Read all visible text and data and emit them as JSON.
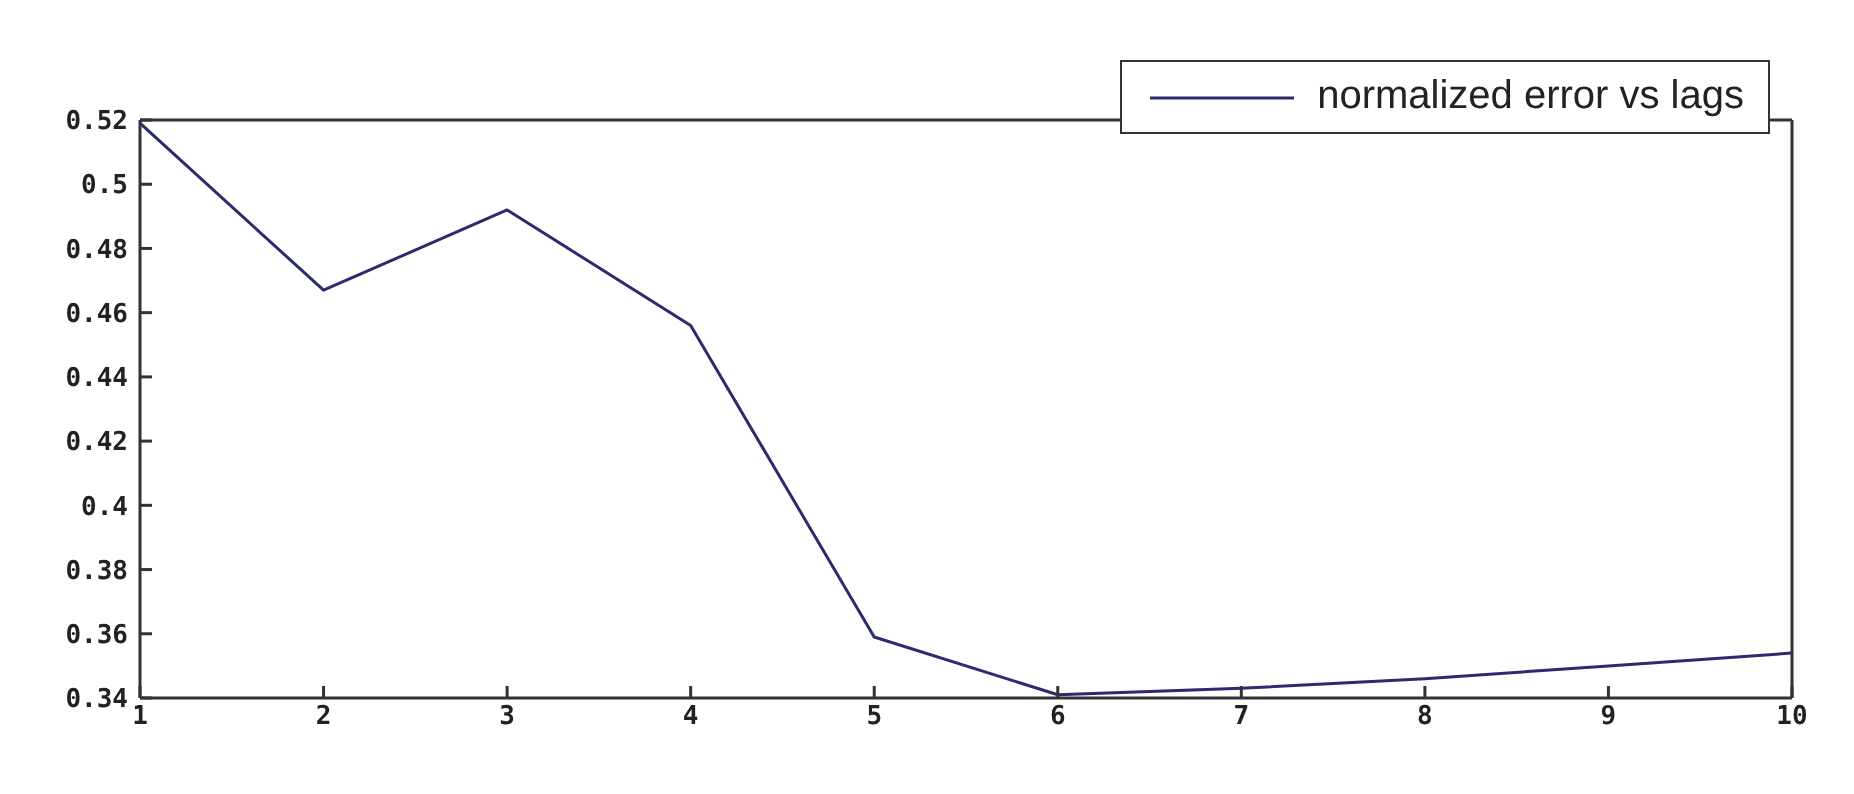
{
  "chart_data": {
    "type": "line",
    "x": [
      1,
      2,
      3,
      4,
      5,
      6,
      7,
      8,
      9,
      10
    ],
    "series": [
      {
        "name": "normalized error vs lags",
        "color": "#2b2b6e",
        "values": [
          0.519,
          0.467,
          0.492,
          0.456,
          0.359,
          0.341,
          0.343,
          0.346,
          0.35,
          0.354
        ]
      }
    ],
    "xlim": [
      1,
      10
    ],
    "xticks": [
      1,
      2,
      3,
      4,
      5,
      6,
      7,
      8,
      9,
      10
    ],
    "ylim": [
      0.34,
      0.52
    ],
    "yticks": [
      0.34,
      0.36,
      0.38,
      0.4,
      0.42,
      0.44,
      0.46,
      0.48,
      0.5,
      0.52
    ],
    "legend": "top right",
    "grid": false,
    "marker": "none",
    "line_style": "solid"
  }
}
